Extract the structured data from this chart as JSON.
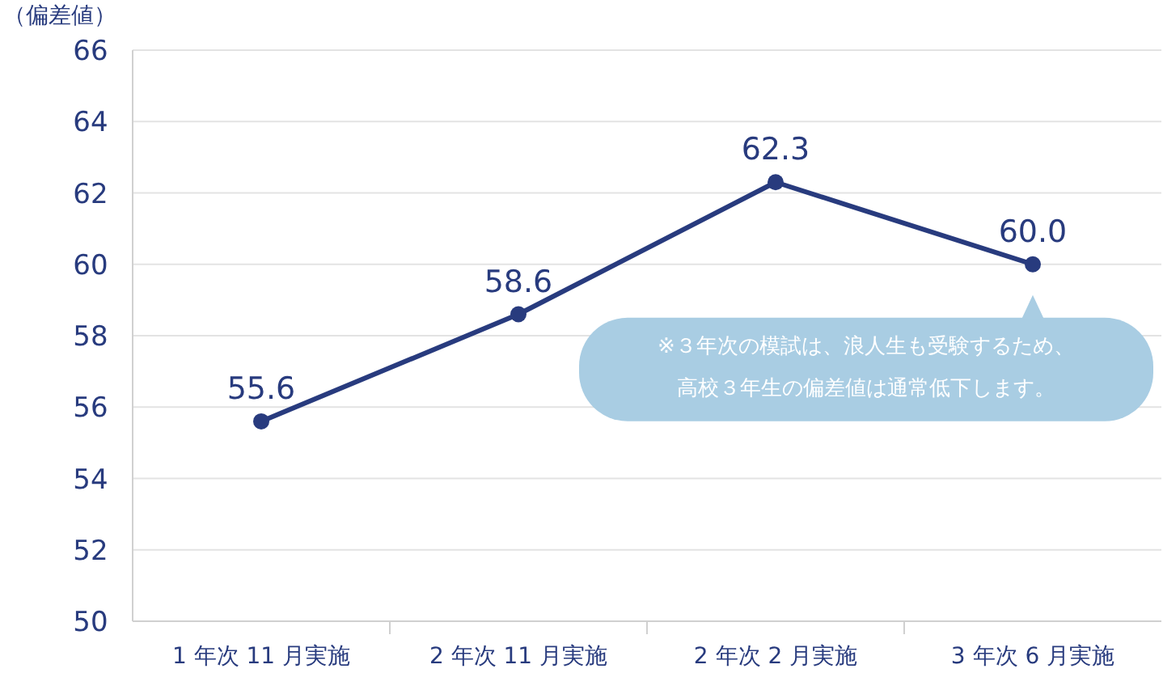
{
  "chart_data": {
    "type": "line",
    "ylabel": "（偏差値）",
    "categories": [
      "1 年次 11 月実施",
      "2 年次 11 月実施",
      "2 年次 2 月実施",
      "3 年次 6 月実施"
    ],
    "series": [
      {
        "color": "#283b7e",
        "values": [
          55.6,
          58.6,
          62.3,
          60.0
        ],
        "value_labels": [
          "55.6",
          "58.6",
          "62.3",
          "60.0"
        ]
      }
    ],
    "ylim": [
      50,
      66
    ],
    "yticks": [
      50,
      52,
      54,
      56,
      58,
      60,
      62,
      64,
      66
    ],
    "grid": "y",
    "marker": "circle",
    "line_style": "solid",
    "annotations": [
      "※３年次の模試は、浪人生も受験するため、高校３年生の偏差値は通常低下します。"
    ]
  }
}
